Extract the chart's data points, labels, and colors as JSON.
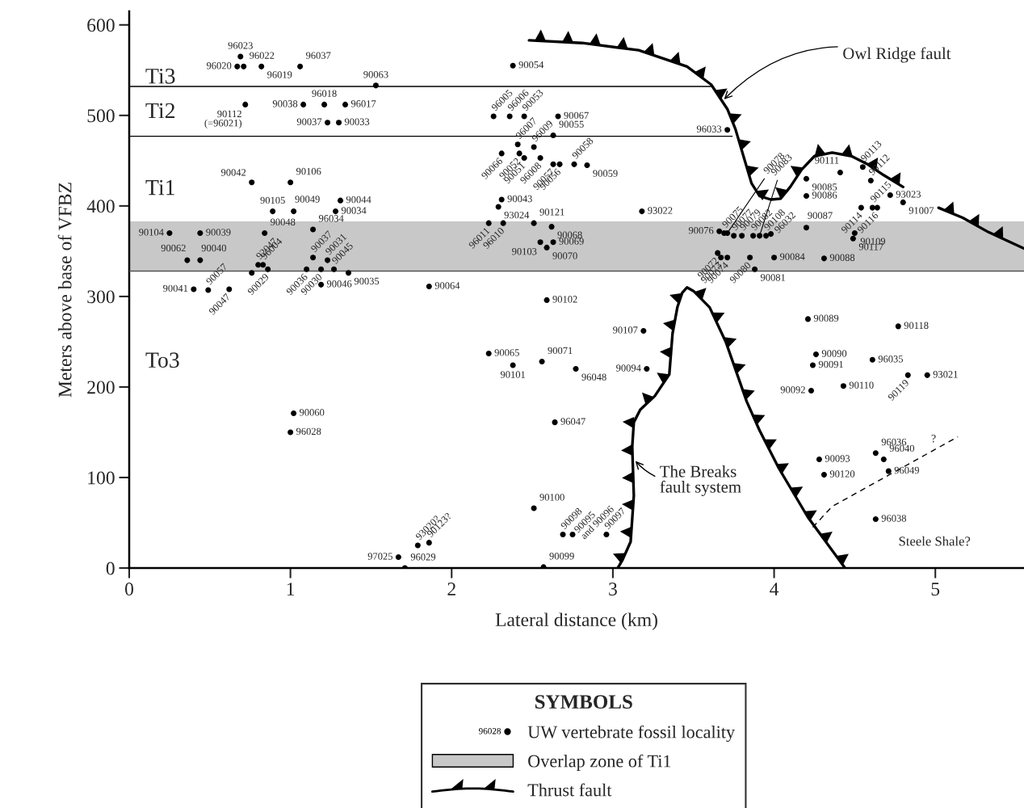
{
  "chart_data": {
    "type": "scatter",
    "xlabel": "Lateral distance (km)",
    "ylabel": "Meters above base of VFBZ",
    "legend_title": "SYMBOLS",
    "legend": "bottom",
    "grid": false,
    "xlim": [
      0,
      5.55
    ],
    "xticks": [
      0,
      1,
      2,
      3,
      4,
      5
    ],
    "ylim": [
      0,
      615
    ],
    "yticks": [
      0,
      100,
      200,
      300,
      400,
      500,
      600
    ],
    "bands": [
      {
        "axis": "y",
        "from": 328,
        "to": 383,
        "label": "Overlap zone of Ti1",
        "color": "#c8c8c8"
      }
    ],
    "series": [
      {
        "name": "UW vertebrate fossil locality",
        "color": "#000000",
        "marker": "circle",
        "x": [
          0.69,
          0.67,
          0.71,
          0.82,
          1.06,
          1.53,
          0.72,
          1.08,
          1.21,
          1.34,
          1.23,
          1.3,
          0.76,
          1.0,
          0.89,
          1.02,
          1.31,
          1.28,
          0.84,
          1.14,
          0.25,
          0.44,
          0.36,
          0.44,
          0.8,
          0.83,
          0.86,
          0.76,
          1.1,
          1.19,
          1.27,
          1.14,
          1.23,
          1.36,
          1.19,
          0.4,
          0.49,
          0.62,
          2.38,
          2.26,
          2.36,
          2.45,
          2.66,
          2.41,
          2.51,
          2.63,
          2.31,
          2.42,
          2.45,
          2.55,
          2.63,
          2.67,
          2.76,
          2.84,
          2.31,
          2.29,
          3.18,
          2.51,
          2.23,
          2.32,
          2.62,
          2.63,
          2.55,
          2.59,
          1.86,
          2.59,
          3.71,
          4.41,
          4.55,
          4.6,
          4.2,
          4.2,
          4.54,
          4.61,
          4.64,
          4.72,
          4.8,
          4.2,
          4.5,
          4.49,
          3.66,
          3.69,
          3.71,
          3.75,
          3.8,
          3.87,
          3.91,
          3.95,
          3.98,
          3.65,
          3.67,
          3.71,
          3.85,
          3.88,
          4.0,
          4.31,
          3.19,
          2.23,
          2.38,
          2.56,
          2.77,
          3.21,
          2.64,
          2.51,
          2.69,
          2.75,
          2.96,
          2.57,
          1.79,
          1.86,
          1.67,
          1.71,
          1.02,
          1.0,
          4.23,
          4.21,
          4.77,
          4.26,
          4.24,
          4.61,
          4.43,
          4.83,
          4.95,
          4.63,
          4.68,
          4.71,
          4.28,
          4.31,
          4.63
        ],
        "values": [
          565,
          554,
          554,
          554,
          554,
          533,
          512,
          512,
          512,
          512,
          492,
          492,
          426,
          426,
          394,
          394,
          406,
          394,
          370,
          374,
          370,
          370,
          340,
          340,
          335,
          335,
          330,
          326,
          330,
          330,
          330,
          343,
          340,
          326,
          313,
          308,
          307,
          308,
          555,
          499,
          499,
          499,
          499,
          468,
          465,
          478,
          458,
          458,
          453,
          453,
          446,
          446,
          446,
          445,
          407,
          399,
          394,
          381,
          381,
          381,
          377,
          360,
          360,
          354,
          311,
          296,
          484,
          437,
          443,
          428,
          430,
          411,
          398,
          398,
          398,
          412,
          404,
          376,
          370,
          364,
          372,
          370,
          370,
          367,
          367,
          367,
          367,
          367,
          369,
          348,
          343,
          343,
          343,
          330,
          343,
          342,
          262,
          237,
          224,
          228,
          220,
          220,
          161,
          66,
          37,
          37,
          37,
          1,
          25,
          28,
          12,
          0,
          171,
          150,
          196,
          275,
          267,
          236,
          224,
          230,
          201,
          213,
          213,
          127,
          120,
          107,
          120,
          103,
          54
        ]
      },
      {
        "type": "line",
        "name": "Thrust fault",
        "color": "#000000",
        "line_style": "solid",
        "x": [
          2.48,
          2.81,
          3.16,
          3.46,
          3.61,
          3.71,
          3.76,
          3.82,
          3.86,
          3.91,
          3.98,
          4.04,
          4.1,
          4.17,
          4.25,
          4.36,
          4.48,
          4.58,
          4.68,
          4.8,
          4.91,
          5.02,
          5.17,
          5.33,
          5.55,
          5.0,
          3.03,
          3.06,
          3.11,
          3.13,
          3.12,
          3.13,
          3.17,
          3.26,
          3.35,
          3.37,
          3.4,
          3.43,
          3.46,
          3.5,
          3.6,
          3.7,
          3.83,
          3.91,
          4.03,
          4.21,
          4.44
        ],
        "values": [
          583,
          580,
          572,
          554,
          534,
          507,
          485,
          449,
          425,
          411,
          407,
          408,
          421,
          440,
          455,
          459,
          455,
          446,
          434,
          421,
          null,
          398,
          387,
          371,
          353,
          null,
          0,
          9,
          29,
          80,
          134,
          161,
          175,
          190,
          214,
          259,
          288,
          304,
          310,
          306,
          288,
          250,
          184,
          152,
          110,
          56,
          0
        ]
      },
      {
        "type": "line",
        "color": "#000000",
        "line_style": "solid",
        "x": [
          0,
          3.61
        ],
        "values": [
          532,
          532
        ]
      },
      {
        "type": "line",
        "color": "#000000",
        "line_style": "solid",
        "x": [
          0,
          3.74
        ],
        "values": [
          477,
          477
        ]
      },
      {
        "type": "line",
        "color": "#555555",
        "line_style": "solid",
        "x": [
          0,
          5.55
        ],
        "values": [
          328,
          328
        ]
      },
      {
        "type": "line",
        "color": "#000000",
        "line_style": "dashed",
        "x": [
          4.24,
          4.36,
          5.14
        ],
        "values": [
          45,
          68,
          145
        ]
      }
    ],
    "annotations": [
      {
        "text": "96023",
        "x": 0.69,
        "y": 565
      },
      {
        "text": "96020",
        "x": 0.67,
        "y": 554
      },
      {
        "text": "96022",
        "x": 0.71,
        "y": 554
      },
      {
        "text": "96019",
        "x": 0.82,
        "y": 554
      },
      {
        "text": "96037",
        "x": 1.06,
        "y": 554
      },
      {
        "text": "90063",
        "x": 1.53,
        "y": 533
      },
      {
        "text": "90112\n(=96021)",
        "x": 0.72,
        "y": 512
      },
      {
        "text": "90038",
        "x": 1.08,
        "y": 512
      },
      {
        "text": "96018",
        "x": 1.21,
        "y": 512
      },
      {
        "text": "96017",
        "x": 1.34,
        "y": 512
      },
      {
        "text": "90037",
        "x": 1.23,
        "y": 492
      },
      {
        "text": "90033",
        "x": 1.3,
        "y": 492
      },
      {
        "text": "90042",
        "x": 0.76,
        "y": 426
      },
      {
        "text": "90106",
        "x": 1.0,
        "y": 426
      },
      {
        "text": "90105",
        "x": 0.89,
        "y": 394
      },
      {
        "text": "90049",
        "x": 1.02,
        "y": 394
      },
      {
        "text": "90044",
        "x": 1.31,
        "y": 406
      },
      {
        "text": "90034",
        "x": 1.28,
        "y": 394
      },
      {
        "text": "90048",
        "x": 0.84,
        "y": 370
      },
      {
        "text": "96034",
        "x": 1.14,
        "y": 374
      },
      {
        "text": "90104",
        "x": 0.25,
        "y": 370
      },
      {
        "text": "90039",
        "x": 0.44,
        "y": 370
      },
      {
        "text": "90062",
        "x": 0.36,
        "y": 340
      },
      {
        "text": "90040",
        "x": 0.44,
        "y": 340
      },
      {
        "text": "92047",
        "x": 0.8,
        "y": 335
      },
      {
        "text": "96004",
        "x": 0.83,
        "y": 335
      },
      {
        "text": "90029",
        "x": 0.86,
        "y": 330
      },
      {
        "text": "90036",
        "x": 1.1,
        "y": 330
      },
      {
        "text": "90030",
        "x": 1.19,
        "y": 330
      },
      {
        "text": "90045",
        "x": 1.27,
        "y": 330
      },
      {
        "text": "90037",
        "x": 1.14,
        "y": 343
      },
      {
        "text": "90031",
        "x": 1.23,
        "y": 340
      },
      {
        "text": "90035",
        "x": 1.36,
        "y": 326
      },
      {
        "text": "90046",
        "x": 1.19,
        "y": 313
      },
      {
        "text": "90041",
        "x": 0.4,
        "y": 308
      },
      {
        "text": "90057",
        "x": 0.49,
        "y": 307
      },
      {
        "text": "90047",
        "x": 0.62,
        "y": 308
      },
      {
        "text": "90054",
        "x": 2.38,
        "y": 555
      },
      {
        "text": "96005",
        "x": 2.26,
        "y": 499
      },
      {
        "text": "96006",
        "x": 2.36,
        "y": 499
      },
      {
        "text": "90053",
        "x": 2.45,
        "y": 499
      },
      {
        "text": "90067",
        "x": 2.66,
        "y": 499
      },
      {
        "text": "96007",
        "x": 2.41,
        "y": 468
      },
      {
        "text": "96009",
        "x": 2.51,
        "y": 465
      },
      {
        "text": "90055",
        "x": 2.63,
        "y": 478
      },
      {
        "text": "90066",
        "x": 2.31,
        "y": 458
      },
      {
        "text": "90052",
        "x": 2.42,
        "y": 458
      },
      {
        "text": "90051",
        "x": 2.45,
        "y": 453
      },
      {
        "text": "96008",
        "x": 2.55,
        "y": 453
      },
      {
        "text": "90057",
        "x": 2.63,
        "y": 446
      },
      {
        "text": "90056",
        "x": 2.67,
        "y": 446
      },
      {
        "text": "90058",
        "x": 2.76,
        "y": 446
      },
      {
        "text": "90059",
        "x": 2.84,
        "y": 445
      },
      {
        "text": "90043",
        "x": 2.31,
        "y": 407
      },
      {
        "text": "93024",
        "x": 2.29,
        "y": 399
      },
      {
        "text": "93022",
        "x": 3.18,
        "y": 394
      },
      {
        "text": "90121",
        "x": 2.51,
        "y": 381
      },
      {
        "text": "96011",
        "x": 2.23,
        "y": 381
      },
      {
        "text": "96010",
        "x": 2.32,
        "y": 381
      },
      {
        "text": "90068",
        "x": 2.62,
        "y": 377
      },
      {
        "text": "90069",
        "x": 2.63,
        "y": 360
      },
      {
        "text": "90103",
        "x": 2.55,
        "y": 360
      },
      {
        "text": "90070",
        "x": 2.59,
        "y": 354
      },
      {
        "text": "90064",
        "x": 1.86,
        "y": 311
      },
      {
        "text": "90102",
        "x": 2.59,
        "y": 296
      },
      {
        "text": "96033",
        "x": 3.71,
        "y": 484
      },
      {
        "text": "90111",
        "x": 4.41,
        "y": 437
      },
      {
        "text": "90113",
        "x": 4.55,
        "y": 443
      },
      {
        "text": "90112",
        "x": 4.6,
        "y": 428
      },
      {
        "text": "90085",
        "x": 4.2,
        "y": 430
      },
      {
        "text": "90086",
        "x": 4.2,
        "y": 411
      },
      {
        "text": "90114",
        "x": 4.54,
        "y": 398
      },
      {
        "text": "90115",
        "x": 4.61,
        "y": 398
      },
      {
        "text": "90116",
        "x": 4.64,
        "y": 398
      },
      {
        "text": "93023",
        "x": 4.72,
        "y": 412
      },
      {
        "text": "91007",
        "x": 4.8,
        "y": 404
      },
      {
        "text": "90087",
        "x": 4.2,
        "y": 376
      },
      {
        "text": "90109",
        "x": 4.5,
        "y": 370
      },
      {
        "text": "90117",
        "x": 4.49,
        "y": 364
      },
      {
        "text": "90076",
        "x": 3.66,
        "y": 372
      },
      {
        "text": "90075",
        "x": 3.69,
        "y": 370
      },
      {
        "text": "90078",
        "x": 3.71,
        "y": 370
      },
      {
        "text": "90077",
        "x": 3.75,
        "y": 367
      },
      {
        "text": "90079",
        "x": 3.8,
        "y": 367
      },
      {
        "text": "90082",
        "x": 3.87,
        "y": 367
      },
      {
        "text": "90083",
        "x": 3.91,
        "y": 367
      },
      {
        "text": "90108",
        "x": 3.95,
        "y": 367
      },
      {
        "text": "96032",
        "x": 3.98,
        "y": 369
      },
      {
        "text": "90072",
        "x": 3.65,
        "y": 348
      },
      {
        "text": "90073",
        "x": 3.67,
        "y": 343
      },
      {
        "text": "90074",
        "x": 3.71,
        "y": 343
      },
      {
        "text": "90080",
        "x": 3.85,
        "y": 343
      },
      {
        "text": "90081",
        "x": 3.88,
        "y": 330
      },
      {
        "text": "90084",
        "x": 4.0,
        "y": 343
      },
      {
        "text": "90088",
        "x": 4.31,
        "y": 342
      },
      {
        "text": "90107",
        "x": 3.19,
        "y": 262
      },
      {
        "text": "90065",
        "x": 2.23,
        "y": 237
      },
      {
        "text": "90101",
        "x": 2.38,
        "y": 224
      },
      {
        "text": "90071",
        "x": 2.56,
        "y": 228
      },
      {
        "text": "96048",
        "x": 2.77,
        "y": 220
      },
      {
        "text": "90094",
        "x": 3.21,
        "y": 220
      },
      {
        "text": "96047",
        "x": 2.64,
        "y": 161
      },
      {
        "text": "90100",
        "x": 2.51,
        "y": 66
      },
      {
        "text": "90098",
        "x": 2.69,
        "y": 37
      },
      {
        "text": "90095\nand 90096",
        "x": 2.75,
        "y": 37
      },
      {
        "text": "90097",
        "x": 2.96,
        "y": 37
      },
      {
        "text": "90099",
        "x": 2.57,
        "y": 1
      },
      {
        "text": "93020?",
        "x": 1.79,
        "y": 25
      },
      {
        "text": "90123?",
        "x": 1.86,
        "y": 28
      },
      {
        "text": "97025",
        "x": 1.67,
        "y": 12
      },
      {
        "text": "96029",
        "x": 1.71,
        "y": 0
      },
      {
        "text": "90060",
        "x": 1.02,
        "y": 171
      },
      {
        "text": "96028",
        "x": 1.0,
        "y": 150
      },
      {
        "text": "90092",
        "x": 4.23,
        "y": 196
      },
      {
        "text": "90089",
        "x": 4.21,
        "y": 275
      },
      {
        "text": "90118",
        "x": 4.77,
        "y": 267
      },
      {
        "text": "90090",
        "x": 4.26,
        "y": 236
      },
      {
        "text": "90091",
        "x": 4.24,
        "y": 224
      },
      {
        "text": "96035",
        "x": 4.61,
        "y": 230
      },
      {
        "text": "90110",
        "x": 4.43,
        "y": 201
      },
      {
        "text": "90119",
        "x": 4.83,
        "y": 213
      },
      {
        "text": "93021",
        "x": 4.95,
        "y": 213
      },
      {
        "text": "96036",
        "x": 4.63,
        "y": 127
      },
      {
        "text": "96040",
        "x": 4.68,
        "y": 120
      },
      {
        "text": "96049",
        "x": 4.71,
        "y": 107
      },
      {
        "text": "90093",
        "x": 4.28,
        "y": 120
      },
      {
        "text": "90120",
        "x": 4.31,
        "y": 103
      },
      {
        "text": "96038",
        "x": 4.63,
        "y": 54
      },
      {
        "text": "Owl Ridge fault",
        "x": 3.68,
        "y": 516
      },
      {
        "text": "The Breaks\nfault system",
        "x": 3.13,
        "y": 120
      },
      "Ti3",
      "Ti2",
      "Ti1",
      "To3",
      "Steele Shale?",
      "?",
      "96028"
    ]
  }
}
